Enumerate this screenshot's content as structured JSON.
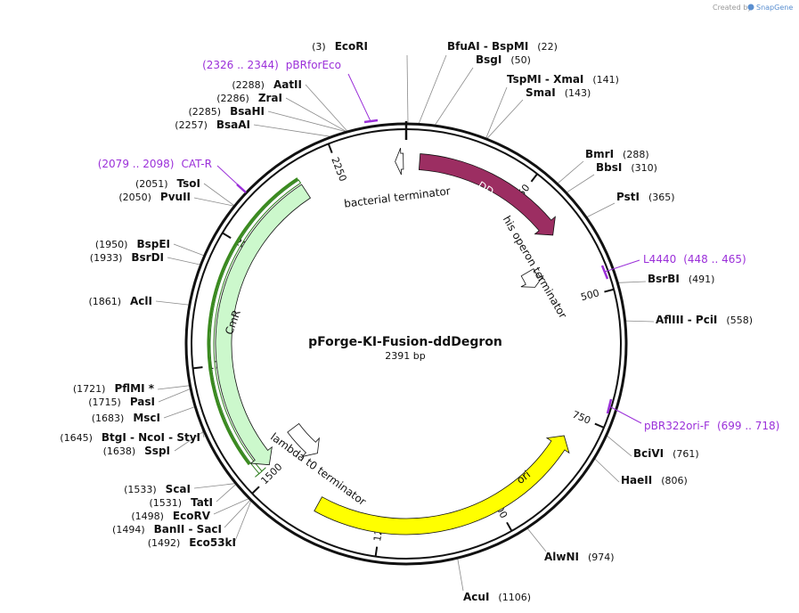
{
  "plasmid": {
    "name": "pForge-KI-Fusion-ddDegron",
    "length_label": "2391 bp",
    "length_bp": 2391
  },
  "credit": {
    "prefix": "Created by",
    "brand": "SnapGene"
  },
  "ring_ticks": [
    {
      "bp": 250,
      "label": "250"
    },
    {
      "bp": 500,
      "label": "500"
    },
    {
      "bp": 750,
      "label": "750"
    },
    {
      "bp": 1000,
      "label": "1000"
    },
    {
      "bp": 1250,
      "label": "1250"
    },
    {
      "bp": 1500,
      "label": "1500"
    },
    {
      "bp": 1750,
      "label": "1750"
    },
    {
      "bp": 2000,
      "label": "2000"
    },
    {
      "bp": 2250,
      "label": "2250"
    }
  ],
  "features": [
    {
      "name": "DD",
      "start": 28,
      "end": 355,
      "color": "#9c2e62",
      "label_color": "#ffffff",
      "direction": "cw"
    },
    {
      "name": "bacterial terminator",
      "start": 2368,
      "end": 2385,
      "color": "#ffffff",
      "label_color": "#111111",
      "direction": "ccw"
    },
    {
      "name": "his operon terminator",
      "start": 395,
      "end": 440,
      "color": "#ffffff",
      "label_color": "#111111",
      "direction": "cw"
    },
    {
      "name": "ori",
      "start": 798,
      "end": 1387,
      "color": "#ffff00",
      "label_color": "#111111",
      "direction": "ccw"
    },
    {
      "name": "lambda t0 terminator",
      "start": 1455,
      "end": 1550,
      "color": "#ffffff",
      "label_color": "#111111",
      "direction": "ccw"
    },
    {
      "name": "CmR",
      "start": 1518,
      "end": 2170,
      "color": "#ccf8cc",
      "label_color": "#111111",
      "direction": "ccw"
    }
  ],
  "primers": [
    {
      "text": "pBRforEco",
      "range": "(2326 .. 2344)",
      "color": "#9b30d9"
    },
    {
      "text": "CAT-R",
      "range": "(2079 .. 2098)",
      "color": "#9b30d9"
    },
    {
      "text": "L4440",
      "range": "(448 .. 465)",
      "color": "#9b30d9"
    },
    {
      "text": "pBR322ori-F",
      "range": "(699 .. 718)",
      "color": "#9b30d9"
    }
  ],
  "sites": [
    {
      "enzymes": "EcoRI",
      "pos": "(3)",
      "bp": 3
    },
    {
      "enzymes": "BfuAI - BspMI",
      "pos": "(22)",
      "bp": 22
    },
    {
      "enzymes": "BsgI",
      "pos": "(50)",
      "bp": 50
    },
    {
      "enzymes": "TspMI - XmaI",
      "pos": "(141)",
      "bp": 141
    },
    {
      "enzymes": "SmaI",
      "pos": "(143)",
      "bp": 143
    },
    {
      "enzymes": "BmrI",
      "pos": "(288)",
      "bp": 288
    },
    {
      "enzymes": "BbsI",
      "pos": "(310)",
      "bp": 310
    },
    {
      "enzymes": "PstI",
      "pos": "(365)",
      "bp": 365
    },
    {
      "enzymes": "BsrBI",
      "pos": "(491)",
      "bp": 491
    },
    {
      "enzymes": "AflIII - PciI",
      "pos": "(558)",
      "bp": 558
    },
    {
      "enzymes": "BciVI",
      "pos": "(761)",
      "bp": 761
    },
    {
      "enzymes": "HaeII",
      "pos": "(806)",
      "bp": 806
    },
    {
      "enzymes": "AlwNI",
      "pos": "(974)",
      "bp": 974
    },
    {
      "enzymes": "AcuI",
      "pos": "(1106)",
      "bp": 1106
    },
    {
      "enzymes": "Eco53kI",
      "pos": "(1492)",
      "bp": 1492
    },
    {
      "enzymes": "BanII - SacI",
      "pos": "(1494)",
      "bp": 1494
    },
    {
      "enzymes": "EcoRV",
      "pos": "(1498)",
      "bp": 1498
    },
    {
      "enzymes": "TatI",
      "pos": "(1531)",
      "bp": 1531
    },
    {
      "enzymes": "ScaI",
      "pos": "(1533)",
      "bp": 1533
    },
    {
      "enzymes": "SspI",
      "pos": "(1638)",
      "bp": 1638
    },
    {
      "enzymes": "BtgI - NcoI - StyI",
      "pos": "(1645)",
      "bp": 1645
    },
    {
      "enzymes": "MscI",
      "pos": "(1683)",
      "bp": 1683
    },
    {
      "enzymes": "PasI",
      "pos": "(1715)",
      "bp": 1715
    },
    {
      "enzymes": "PflMI *",
      "pos": "(1721)",
      "bp": 1721
    },
    {
      "enzymes": "AclI",
      "pos": "(1861)",
      "bp": 1861
    },
    {
      "enzymes": "BsrDI",
      "pos": "(1933)",
      "bp": 1933
    },
    {
      "enzymes": "BspEI",
      "pos": "(1950)",
      "bp": 1950
    },
    {
      "enzymes": "PvuII",
      "pos": "(2050)",
      "bp": 2050
    },
    {
      "enzymes": "TsoI",
      "pos": "(2051)",
      "bp": 2051
    },
    {
      "enzymes": "BsaAI",
      "pos": "(2257)",
      "bp": 2257
    },
    {
      "enzymes": "BsaHI",
      "pos": "(2285)",
      "bp": 2285
    },
    {
      "enzymes": "ZraI",
      "pos": "(2286)",
      "bp": 2286
    },
    {
      "enzymes": "AatII",
      "pos": "(2288)",
      "bp": 2288
    }
  ]
}
